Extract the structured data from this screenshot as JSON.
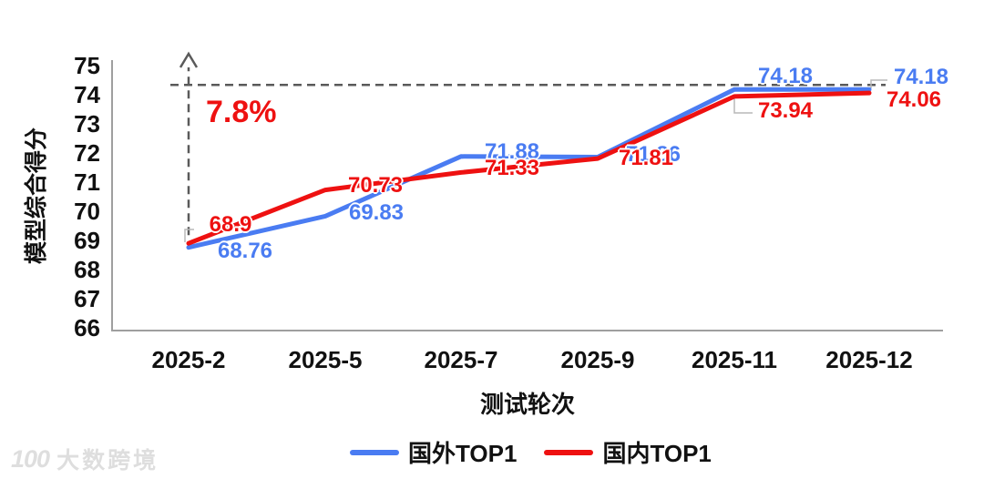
{
  "chart_data": {
    "type": "line",
    "title": "",
    "categories": [
      "2025-2",
      "2025-5",
      "2025-7",
      "2025-9",
      "2025-11",
      "2025-12"
    ],
    "series": [
      {
        "name": "国外TOP1",
        "color": "#4a7cf2",
        "values": [
          68.76,
          69.83,
          71.88,
          71.86,
          74.18,
          74.18
        ],
        "labels": [
          "68.76",
          "69.83",
          "71.88",
          "71.86",
          "74.18",
          "74.18"
        ]
      },
      {
        "name": "国内TOP1",
        "color": "#ee1111",
        "values": [
          68.9,
          70.73,
          71.33,
          71.81,
          73.94,
          74.06
        ],
        "labels": [
          "68.9",
          "70.73",
          "71.33",
          "71.81",
          "73.94",
          "74.06"
        ]
      }
    ],
    "xlabel": "测试轮次",
    "ylabel": "模型综合得分",
    "ylim": [
      66,
      75
    ],
    "ytick_step": 1,
    "yticks": [
      66,
      67,
      68,
      69,
      70,
      71,
      72,
      73,
      74,
      75
    ],
    "grid": false,
    "legend_position": "bottom",
    "annotation": {
      "text": "7.8%",
      "color": "#ee1111",
      "from_value": 68.9,
      "to_value": 74.18
    }
  },
  "watermark": {
    "logo": "100",
    "text": "大数跨境"
  }
}
